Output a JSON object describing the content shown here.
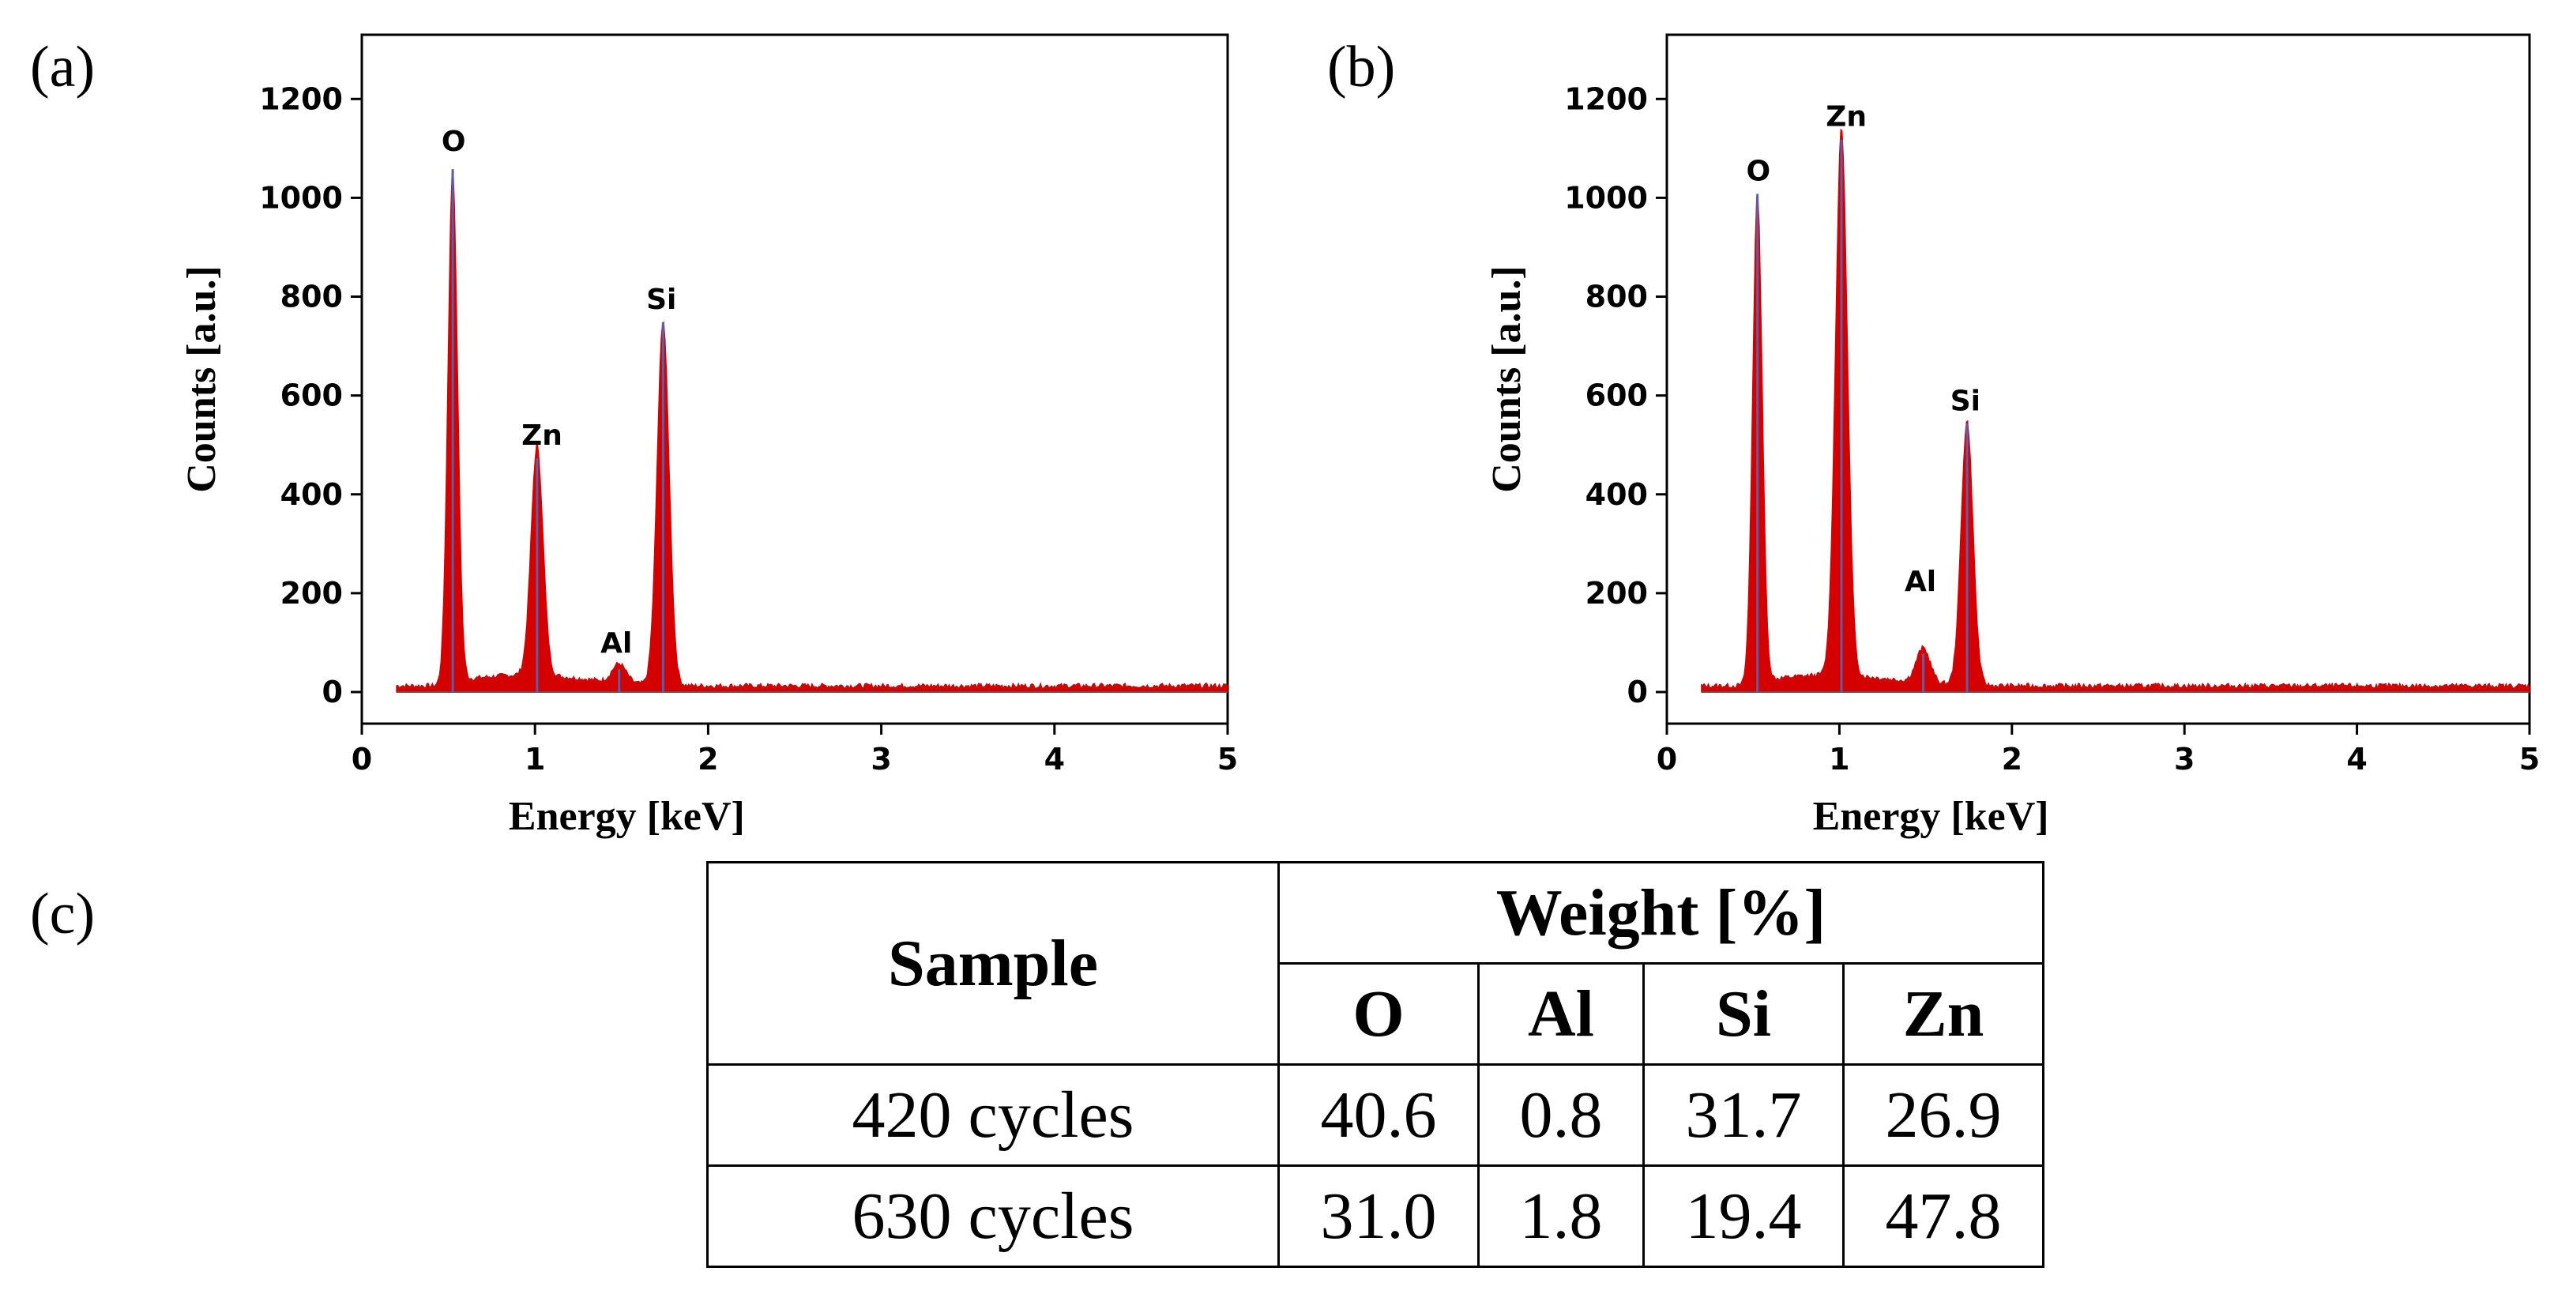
{
  "panels": {
    "a": {
      "label": "(a)"
    },
    "b": {
      "label": "(b)"
    },
    "c": {
      "label": "(c)"
    }
  },
  "colors": {
    "fill": "#d40000",
    "peak_line": "#5b5ea8",
    "frame": "#000000"
  },
  "chart_data": [
    {
      "type": "line",
      "panel": "a",
      "xlabel": "Energy [keV]",
      "ylabel": "Counts [a.u.]",
      "xlim": [
        0,
        5
      ],
      "ylim": [
        0,
        1300
      ],
      "xticks": [
        0,
        1,
        2,
        3,
        4,
        5
      ],
      "yticks": [
        0,
        200,
        400,
        600,
        800,
        1000,
        1200
      ],
      "baseline": 8,
      "peaks": [
        {
          "element": "O",
          "energy": 0.525,
          "counts": 1050,
          "width": 0.028
        },
        {
          "element": "Zn",
          "energy": 1.012,
          "counts": 465,
          "width": 0.035
        },
        {
          "element": "Al",
          "energy": 1.486,
          "counts": 38,
          "width": 0.04
        },
        {
          "element": "Si",
          "energy": 1.74,
          "counts": 740,
          "width": 0.035
        }
      ],
      "peak_labels": [
        {
          "text": "O",
          "energy": 0.53,
          "counts": 1095
        },
        {
          "text": "Zn",
          "energy": 1.04,
          "counts": 500
        },
        {
          "text": "Al",
          "energy": 1.47,
          "counts": 80
        },
        {
          "text": "Si",
          "energy": 1.73,
          "counts": 775
        }
      ]
    },
    {
      "type": "line",
      "panel": "b",
      "xlabel": "Energy [keV]",
      "ylabel": "Counts [a.u.]",
      "xlim": [
        0,
        5
      ],
      "ylim": [
        0,
        1300
      ],
      "xticks": [
        0,
        1,
        2,
        3,
        4,
        5
      ],
      "yticks": [
        0,
        200,
        400,
        600,
        800,
        1000,
        1200
      ],
      "baseline": 8,
      "peaks": [
        {
          "element": "O",
          "energy": 0.525,
          "counts": 1000,
          "width": 0.028
        },
        {
          "element": "Zn",
          "energy": 1.012,
          "counts": 1110,
          "width": 0.035
        },
        {
          "element": "Al",
          "energy": 1.486,
          "counts": 70,
          "width": 0.04
        },
        {
          "element": "Si",
          "energy": 1.74,
          "counts": 535,
          "width": 0.035
        }
      ],
      "peak_labels": [
        {
          "text": "O",
          "energy": 0.53,
          "counts": 1035
        },
        {
          "text": "Zn",
          "energy": 1.04,
          "counts": 1145
        },
        {
          "text": "Al",
          "energy": 1.47,
          "counts": 205
        },
        {
          "text": "Si",
          "energy": 1.73,
          "counts": 570
        }
      ]
    }
  ],
  "table": {
    "sample_header": "Sample",
    "group_header": "Weight [%]",
    "elements": [
      "O",
      "Al",
      "Si",
      "Zn"
    ],
    "rows": [
      {
        "sample": "420 cycles",
        "values": [
          "40.6",
          "0.8",
          "31.7",
          "26.9"
        ]
      },
      {
        "sample": "630 cycles",
        "values": [
          "31.0",
          "1.8",
          "19.4",
          "47.8"
        ]
      }
    ]
  }
}
